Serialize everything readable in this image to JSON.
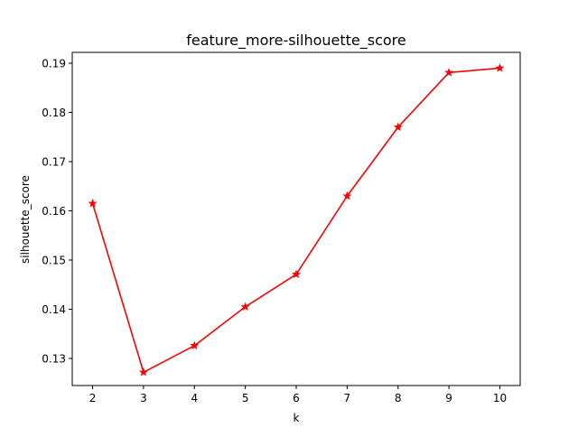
{
  "chart_data": {
    "type": "line",
    "title": "feature_more-silhouette_score",
    "xlabel": "k",
    "ylabel": "silhouette_score",
    "x_ticks": [
      "2",
      "3",
      "4",
      "5",
      "6",
      "7",
      "8",
      "9",
      "10"
    ],
    "y_ticks": [
      "0.13",
      "0.14",
      "0.15",
      "0.16",
      "0.17",
      "0.18",
      "0.19"
    ],
    "xlim": [
      1.6,
      10.4
    ],
    "ylim": [
      0.1245,
      0.1922
    ],
    "grid": false,
    "series": [
      {
        "x": [
          2,
          3,
          4,
          5,
          6,
          7,
          8,
          9,
          10
        ],
        "values": [
          0.1615,
          0.1272,
          0.1326,
          0.1405,
          0.1471,
          0.163,
          0.177,
          0.1881,
          0.189
        ],
        "color": "#ff0000",
        "marker": "star"
      }
    ]
  }
}
